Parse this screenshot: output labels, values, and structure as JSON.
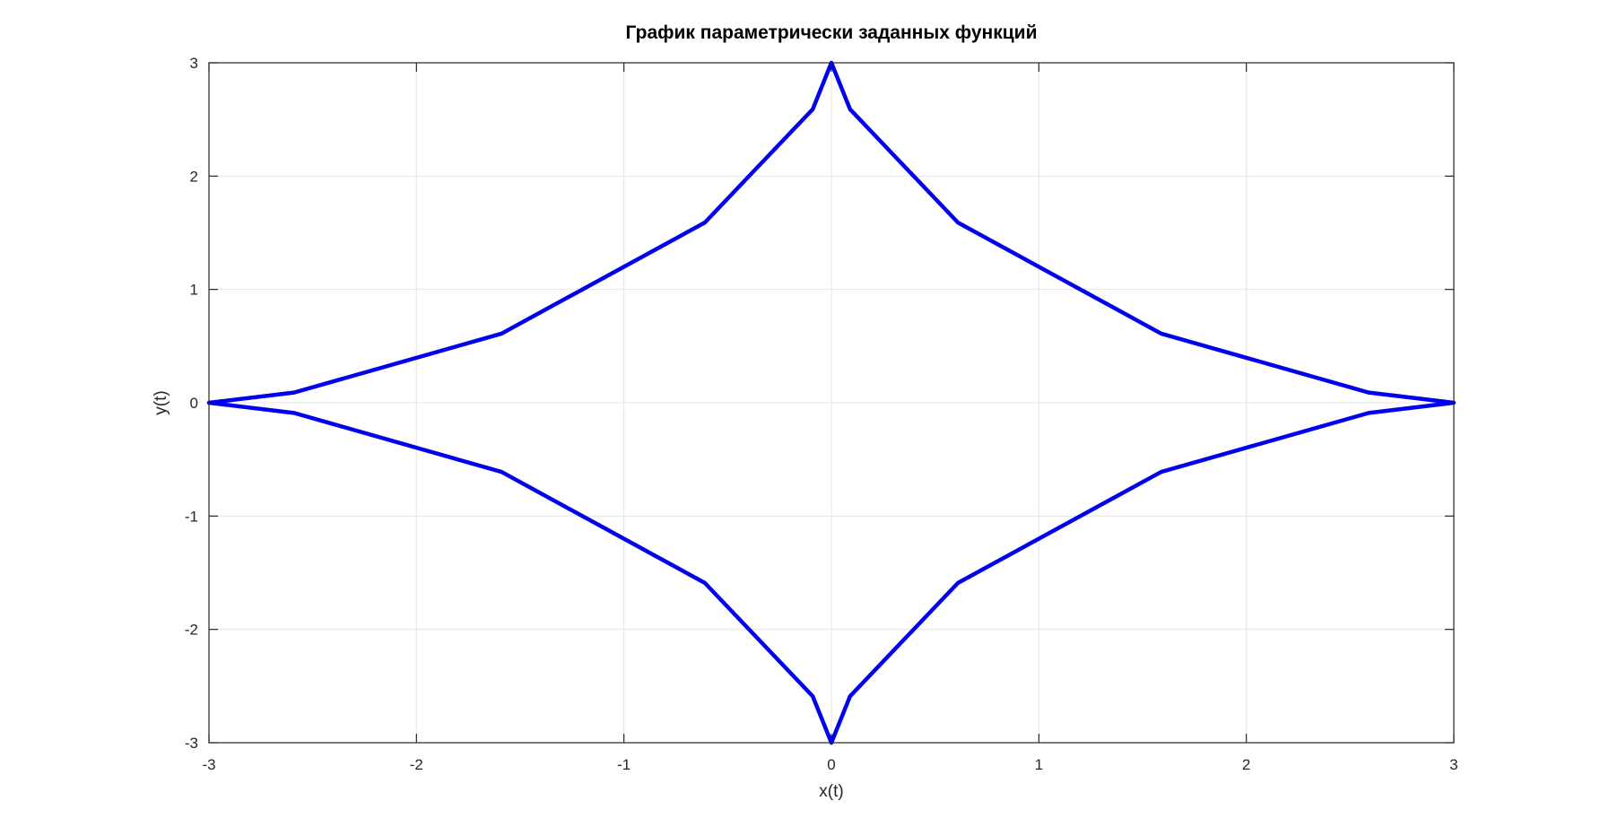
{
  "chart_data": {
    "type": "line",
    "title": "График параметрически заданных функций",
    "xlabel": "x(t)",
    "ylabel": "y(t)",
    "xlim": [
      -3,
      3
    ],
    "ylim": [
      -3,
      3
    ],
    "xticks": [
      -3,
      -2,
      -1,
      0,
      1,
      2,
      3
    ],
    "yticks": [
      -3,
      -2,
      -1,
      0,
      1,
      2,
      3
    ],
    "xtick_labels": [
      "-3",
      "-2",
      "-1",
      "0",
      "1",
      "2",
      "3"
    ],
    "ytick_labels": [
      "-3",
      "-2",
      "-1",
      "0",
      "1",
      "2",
      "3"
    ],
    "grid": true,
    "series": [
      {
        "color": "#0000ee",
        "x": [
          3,
          2.59,
          1.59,
          0.61,
          0.09,
          0,
          -0.09,
          -0.61,
          -1.59,
          -2.59,
          -3,
          -2.59,
          -1.59,
          -0.61,
          -0.09,
          0,
          0.09,
          0.61,
          1.59,
          2.59,
          3
        ],
        "y": [
          0,
          0.09,
          0.61,
          1.59,
          2.59,
          3,
          2.59,
          1.59,
          0.61,
          0.09,
          0,
          -0.09,
          -0.61,
          -1.59,
          -2.59,
          -3,
          -2.59,
          -1.59,
          -0.61,
          -0.09,
          0
        ]
      }
    ]
  }
}
